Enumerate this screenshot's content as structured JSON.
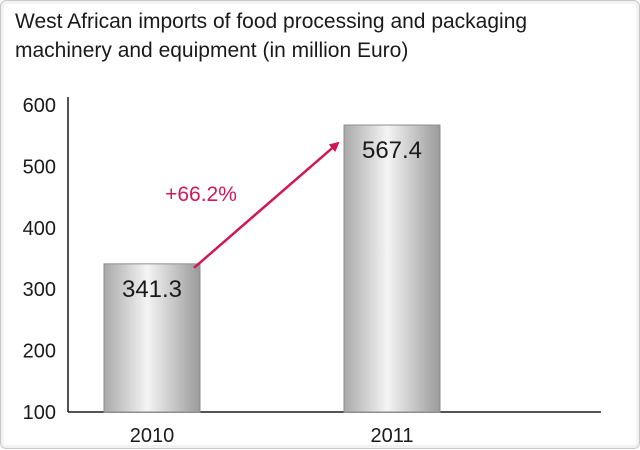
{
  "chart_data": {
    "type": "bar",
    "title": "West African imports of food processing and packaging machinery and equipment (in million Euro)",
    "categories": [
      "2010",
      "2011"
    ],
    "values": [
      341.3,
      567.4
    ],
    "value_labels": [
      "341.3",
      "567.4"
    ],
    "xlabel": "",
    "ylabel": "",
    "ylim": [
      100,
      600
    ],
    "yticks": [
      100,
      200,
      300,
      400,
      500,
      600
    ],
    "grid": false,
    "annotation": {
      "text": "+66.2%",
      "from": "2010",
      "to": "2011"
    },
    "colors": {
      "bar": "#bdbdbd",
      "annotation": "#d0175a",
      "axis": "#1a1a1a"
    }
  }
}
